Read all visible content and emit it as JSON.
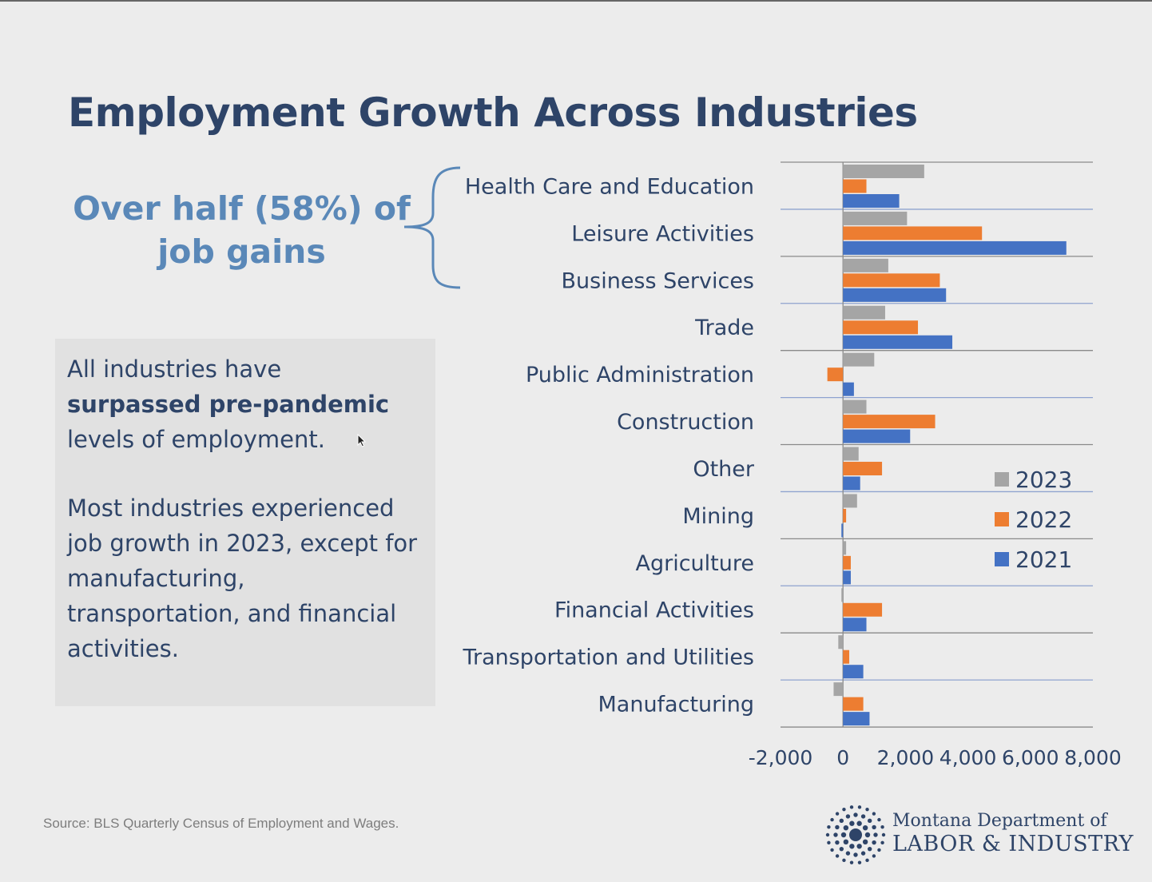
{
  "slide": {
    "title": "Employment Growth Across Industries",
    "callout_line1": "Over half (58%) of",
    "callout_line2": "job gains",
    "box_text1_normal_a": "All industries have",
    "box_text1_bold": "surpassed pre-pandemic",
    "box_text1_normal_b": "levels of employment.",
    "box_text2": "Most industries experienced job growth in 2023, except for manufacturing, transportation, and financial activities.",
    "source": "Source: BLS Quarterly Census of Employment and Wages.",
    "logo_line1": "Montana Department of",
    "logo_line2": "LABOR & INDUSTRY"
  },
  "chart_data": {
    "type": "bar",
    "orientation": "horizontal",
    "categories": [
      "Health Care and Education",
      "Leisure Activities",
      "Business Services",
      "Trade",
      "Public Administration",
      "Construction",
      "Other",
      "Mining",
      "Agriculture",
      "Financial Activities",
      "Transportation and Utilities",
      "Manufacturing"
    ],
    "series": [
      {
        "name": "2023",
        "color": "#a5a5a5",
        "values": [
          2600,
          2050,
          1450,
          1350,
          1000,
          750,
          500,
          450,
          100,
          -50,
          -150,
          -300
        ]
      },
      {
        "name": "2022",
        "color": "#ed7d31",
        "values": [
          750,
          4450,
          3100,
          2400,
          -500,
          2950,
          1250,
          100,
          250,
          1250,
          200,
          650
        ]
      },
      {
        "name": "2021",
        "color": "#4472c4",
        "values": [
          1800,
          7150,
          3300,
          3500,
          350,
          2150,
          550,
          -50,
          250,
          750,
          650,
          850
        ]
      }
    ],
    "xlim": [
      -2000,
      8000
    ],
    "xticks": [
      "-2,000",
      "0",
      "2,000",
      "4,000",
      "6,000",
      "8,000"
    ],
    "legend_position": "right"
  }
}
